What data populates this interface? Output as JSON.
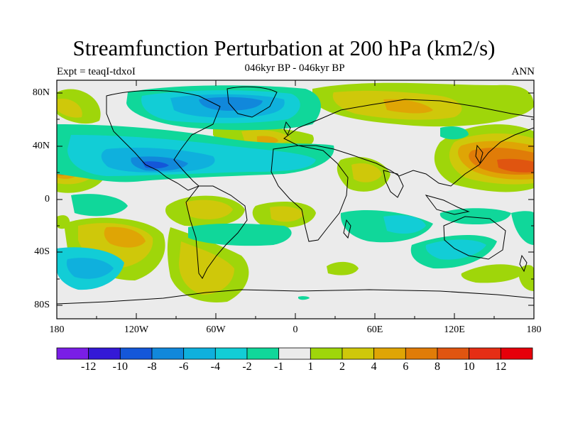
{
  "title": "Streamfunction Perturbation at 200 hPa (km2/s)",
  "left_subtitle": "Expt = teaqI-tdxoI",
  "center_subtitle": "046kyr BP - 046kyr BP",
  "right_subtitle": "ANN",
  "lat_labels": [
    "80N",
    "40N",
    "0",
    "40S",
    "80S"
  ],
  "lon_labels": [
    "180",
    "120W",
    "60W",
    "0",
    "60E",
    "120E",
    "180"
  ],
  "colorbar": {
    "labels": [
      "-12",
      "-10",
      "-8",
      "-6",
      "-4",
      "-2",
      "-1",
      "1",
      "2",
      "4",
      "6",
      "8",
      "10",
      "12"
    ],
    "colors": [
      "#7a1ee6",
      "#3419d6",
      "#1457d9",
      "#1188db",
      "#0fb0dd",
      "#12cdd6",
      "#10d79a",
      "#ebebeb",
      "#9fd60a",
      "#cfc80a",
      "#dfa505",
      "#e07c08",
      "#e05510",
      "#e52e15",
      "#e6000a"
    ]
  }
}
